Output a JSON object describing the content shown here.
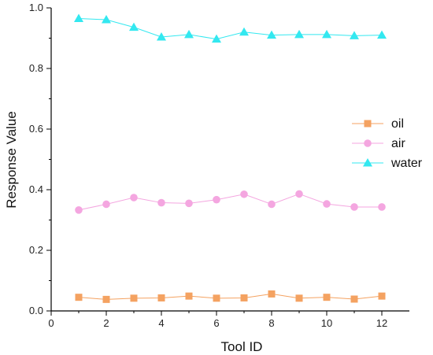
{
  "chart_data": {
    "type": "line",
    "xlabel": "Tool ID",
    "ylabel": "Response Value",
    "xlim": [
      0,
      13
    ],
    "ylim": [
      0,
      1.0
    ],
    "x_ticks": [
      0,
      2,
      4,
      6,
      8,
      10,
      12
    ],
    "x_tick_labels": [
      "0",
      "2",
      "4",
      "6",
      "8",
      "10",
      "12"
    ],
    "y_ticks": [
      0,
      0.2,
      0.4,
      0.6,
      0.8,
      1.0
    ],
    "y_tick_labels": [
      "0.0",
      "0.2",
      "0.4",
      "0.6",
      "0.8",
      "1.0"
    ],
    "grid": false,
    "legend_position": "right-middle",
    "x": [
      1,
      2,
      3,
      4,
      5,
      6,
      7,
      8,
      9,
      10,
      11,
      12
    ],
    "series": [
      {
        "name": "oil",
        "color": "#f4a261",
        "marker": "square",
        "values": [
          0.045,
          0.038,
          0.042,
          0.043,
          0.049,
          0.042,
          0.043,
          0.056,
          0.042,
          0.045,
          0.039,
          0.049
        ]
      },
      {
        "name": "air",
        "color": "#f4a6e0",
        "marker": "circle",
        "values": [
          0.333,
          0.352,
          0.374,
          0.357,
          0.355,
          0.367,
          0.385,
          0.352,
          0.386,
          0.353,
          0.343,
          0.343
        ]
      },
      {
        "name": "water",
        "color": "#33e8f0",
        "marker": "triangle",
        "values": [
          0.965,
          0.961,
          0.936,
          0.904,
          0.912,
          0.897,
          0.92,
          0.91,
          0.912,
          0.912,
          0.908,
          0.91
        ]
      }
    ]
  }
}
